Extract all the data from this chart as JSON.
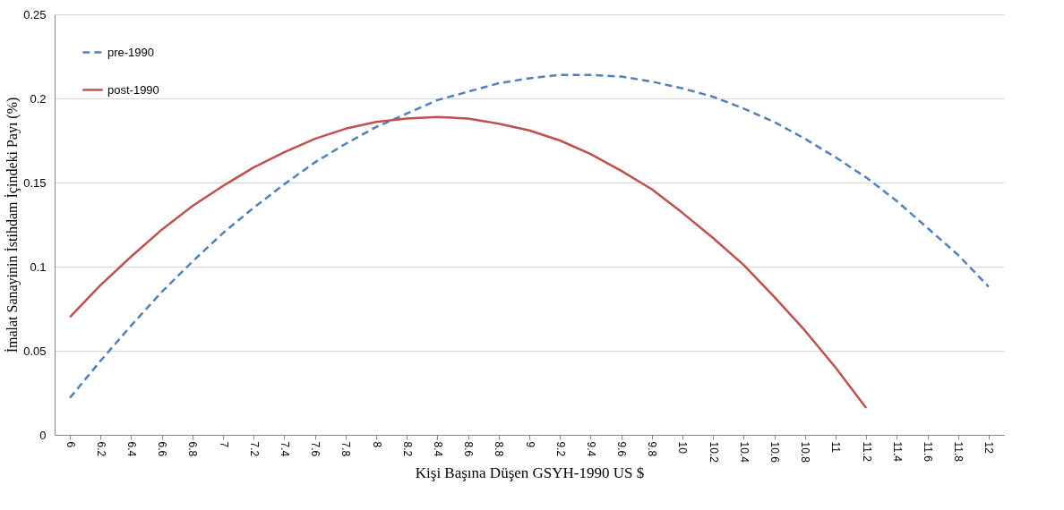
{
  "chart_data": {
    "type": "line",
    "xlabel": "Kişi Başına Düşen GSYH-1990 US $",
    "ylabel": "İmalat Sanayinin İstihdam İçindeki Payı (%)",
    "categories": [
      "6",
      "6.2",
      "6.4",
      "6.6",
      "6.8",
      "7",
      "7.2",
      "7.4",
      "7.6",
      "7.8",
      "8",
      "8.2",
      "8.4",
      "8.6",
      "8.8",
      "9",
      "9.2",
      "9.4",
      "9.6",
      "9.8",
      "10",
      "10.2",
      "10.4",
      "10.6",
      "10.8",
      "11",
      "11.2",
      "11.4",
      "11.6",
      "11.8",
      "12"
    ],
    "series": [
      {
        "name": "pre-1990",
        "color": "#4f81bd",
        "line_style": "dashed",
        "values": [
          0.022,
          0.044,
          0.065,
          0.085,
          0.103,
          0.12,
          0.135,
          0.149,
          0.162,
          0.173,
          0.183,
          0.191,
          0.199,
          0.204,
          0.209,
          0.212,
          0.214,
          0.214,
          0.213,
          0.21,
          0.206,
          0.201,
          0.194,
          0.186,
          0.176,
          0.165,
          0.153,
          0.139,
          0.123,
          0.107,
          0.088
        ]
      },
      {
        "name": "post-1990",
        "color": "#c0504d",
        "line_style": "solid",
        "values": [
          0.07,
          0.089,
          0.106,
          0.122,
          0.136,
          0.148,
          0.159,
          0.168,
          0.176,
          0.182,
          0.186,
          0.188,
          0.189,
          0.188,
          0.185,
          0.181,
          0.175,
          0.167,
          0.157,
          0.146,
          0.132,
          0.117,
          0.101,
          0.082,
          0.062,
          0.04,
          0.016,
          null,
          null,
          null,
          null
        ]
      }
    ],
    "ylim": [
      0,
      0.25
    ],
    "yticks": [
      0,
      0.05,
      0.1,
      0.15,
      0.2,
      0.25
    ],
    "grid": "y",
    "legend": "top left",
    "marker": "none"
  }
}
